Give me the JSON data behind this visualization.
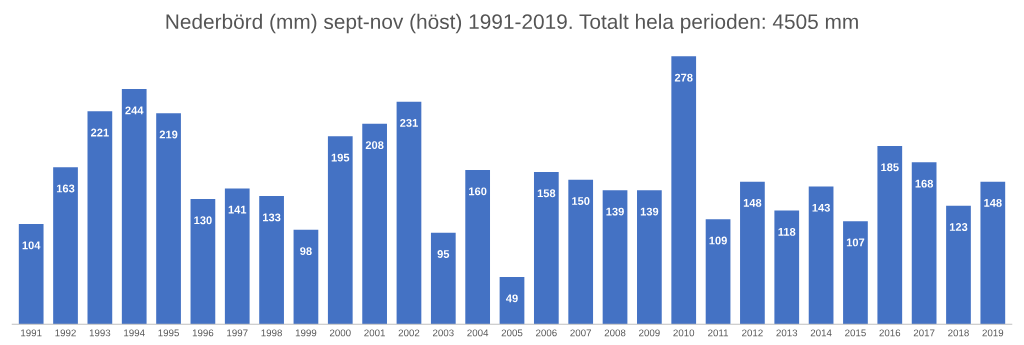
{
  "chart_data": {
    "type": "bar",
    "title": "Nederbörd (mm) sept-nov (höst) 1991-2019. Totalt hela perioden: 4505 mm",
    "categories": [
      "1991",
      "1992",
      "1993",
      "1994",
      "1995",
      "1996",
      "1997",
      "1998",
      "1999",
      "2000",
      "2001",
      "2002",
      "2003",
      "2004",
      "2005",
      "2006",
      "2007",
      "2008",
      "2009",
      "2010",
      "2011",
      "2012",
      "2013",
      "2014",
      "2015",
      "2016",
      "2017",
      "2018",
      "2019"
    ],
    "values": [
      104,
      163,
      221,
      244,
      219,
      130,
      141,
      133,
      98,
      195,
      208,
      231,
      95,
      160,
      49,
      158,
      150,
      139,
      139,
      278,
      109,
      148,
      118,
      143,
      107,
      185,
      168,
      123,
      148
    ],
    "color": "#4472c4",
    "data_labels": true,
    "grid": false,
    "tick_labels": "x"
  }
}
